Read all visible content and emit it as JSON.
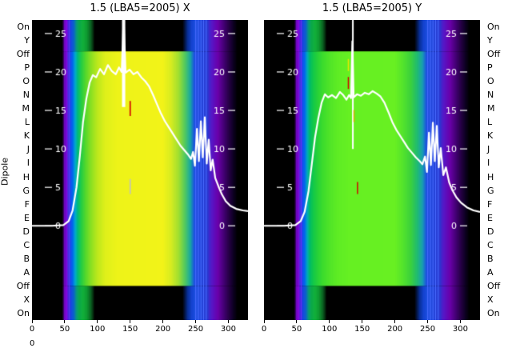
{
  "figure": {
    "ylabel": "Dipole",
    "row_labels": [
      "On",
      "Y",
      "Off",
      "P",
      "O",
      "N",
      "M",
      "L",
      "K",
      "J",
      "I",
      "H",
      "G",
      "F",
      "E",
      "D",
      "C",
      "B",
      "A",
      "Off",
      "X",
      "On"
    ],
    "stray_tick": "0"
  },
  "chart_data": [
    {
      "type": "heatmap",
      "title": "1.5 (LBA5=2005) X",
      "x_ticks": [
        0,
        50,
        100,
        150,
        200,
        250,
        300
      ],
      "x_range": [
        0,
        330
      ],
      "rows": [
        "On",
        "Y",
        "Off",
        "P",
        "O",
        "N",
        "M",
        "L",
        "K",
        "J",
        "I",
        "H",
        "G",
        "F",
        "E",
        "D",
        "C",
        "B",
        "A",
        "Off",
        "X",
        "On"
      ],
      "value_axis": {
        "ticks": [
          0,
          5,
          10,
          15,
          20,
          25
        ],
        "max": 25,
        "zero_frac": 0.686,
        "top_frac": 0.045
      },
      "line": {
        "color": "#ffffff",
        "points": [
          [
            0,
            0
          ],
          [
            30,
            0
          ],
          [
            48,
            0.1
          ],
          [
            56,
            0.6
          ],
          [
            62,
            2
          ],
          [
            68,
            5
          ],
          [
            73,
            9
          ],
          [
            78,
            13.5
          ],
          [
            83,
            16.5
          ],
          [
            88,
            18.6
          ],
          [
            93,
            19.6
          ],
          [
            98,
            19.3
          ],
          [
            104,
            20.4
          ],
          [
            110,
            19.7
          ],
          [
            116,
            20.9
          ],
          [
            122,
            20.1
          ],
          [
            128,
            19.7
          ],
          [
            133,
            20.6
          ],
          [
            137,
            20.0
          ],
          [
            140,
            27
          ],
          [
            143,
            19.9
          ],
          [
            149,
            20.3
          ],
          [
            155,
            19.7
          ],
          [
            161,
            20.0
          ],
          [
            167,
            19.3
          ],
          [
            173,
            18.8
          ],
          [
            179,
            18.1
          ],
          [
            185,
            17.0
          ],
          [
            191,
            15.8
          ],
          [
            197,
            14.6
          ],
          [
            203,
            13.6
          ],
          [
            209,
            12.8
          ],
          [
            215,
            12.0
          ],
          [
            221,
            11.2
          ],
          [
            227,
            10.4
          ],
          [
            233,
            9.8
          ],
          [
            239,
            9.2
          ],
          [
            243,
            8.7
          ],
          [
            246,
            9.6
          ],
          [
            249,
            7.8
          ],
          [
            252,
            12.6
          ],
          [
            255,
            8.4
          ],
          [
            258,
            13.6
          ],
          [
            261,
            8.9
          ],
          [
            264,
            14.1
          ],
          [
            267,
            8.1
          ],
          [
            270,
            11.2
          ],
          [
            273,
            7.2
          ],
          [
            276,
            8.6
          ],
          [
            280,
            6.2
          ],
          [
            285,
            5.1
          ],
          [
            290,
            4.1
          ],
          [
            296,
            3.2
          ],
          [
            303,
            2.6
          ],
          [
            312,
            2.2
          ],
          [
            322,
            2.0
          ],
          [
            330,
            1.9
          ]
        ]
      },
      "colormap_bright": [
        [
          0,
          "#000000"
        ],
        [
          46,
          "#000000"
        ],
        [
          49,
          "#4b0082"
        ],
        [
          52,
          "#6a00c8"
        ],
        [
          55,
          "#4433dd"
        ],
        [
          58,
          "#2244ee"
        ],
        [
          62,
          "#0066ee"
        ],
        [
          66,
          "#00aacc"
        ],
        [
          70,
          "#00bb77"
        ],
        [
          75,
          "#22cc44"
        ],
        [
          82,
          "#55d82c"
        ],
        [
          90,
          "#8ae022"
        ],
        [
          100,
          "#bce81c"
        ],
        [
          112,
          "#dff01a"
        ],
        [
          130,
          "#eef318"
        ],
        [
          200,
          "#f2f318"
        ],
        [
          212,
          "#d8ec20"
        ],
        [
          224,
          "#a0e030"
        ],
        [
          234,
          "#50c860"
        ],
        [
          242,
          "#18a8a0"
        ],
        [
          248,
          "#1c50e0"
        ],
        [
          268,
          "#2838d0"
        ],
        [
          274,
          "#5518c8"
        ],
        [
          284,
          "#6a00aa"
        ],
        [
          292,
          "#48007a"
        ],
        [
          300,
          "#28004a"
        ],
        [
          308,
          "#0c0020"
        ],
        [
          314,
          "#000000"
        ],
        [
          330,
          "#000000"
        ]
      ],
      "colormap_edge": [
        [
          0,
          "#000000"
        ],
        [
          46,
          "#000000"
        ],
        [
          49,
          "#50008c"
        ],
        [
          52,
          "#7a00d2"
        ],
        [
          56,
          "#3c2ce0"
        ],
        [
          60,
          "#1548e0"
        ],
        [
          64,
          "#0a64c8"
        ],
        [
          68,
          "#089a78"
        ],
        [
          72,
          "#0aa84a"
        ],
        [
          78,
          "#12b03a"
        ],
        [
          84,
          "#0e9830"
        ],
        [
          90,
          "#0a6020"
        ],
        [
          96,
          "#000000"
        ],
        [
          230,
          "#000000"
        ],
        [
          238,
          "#08309a"
        ],
        [
          244,
          "#1442d0"
        ],
        [
          250,
          "#1c50e0"
        ],
        [
          268,
          "#2838d0"
        ],
        [
          274,
          "#5518c8"
        ],
        [
          284,
          "#6a00aa"
        ],
        [
          292,
          "#48007a"
        ],
        [
          300,
          "#28004a"
        ],
        [
          308,
          "#0c0020"
        ],
        [
          314,
          "#000000"
        ],
        [
          330,
          "#000000"
        ]
      ],
      "features": [
        {
          "x": 49.5,
          "w": 1.2,
          "y1": 0,
          "y2": 1,
          "color": "#8a10e8"
        },
        {
          "x": 52.8,
          "w": 1.2,
          "y1": 0,
          "y2": 1,
          "color": "#8a10e8"
        },
        {
          "x": 56.2,
          "w": 1.2,
          "y1": 0,
          "y2": 1,
          "color": "#6a2cf0"
        },
        {
          "x": 249.5,
          "w": 1.3,
          "y1": 0,
          "y2": 1,
          "color": "#4a6cff"
        },
        {
          "x": 253.5,
          "w": 1.3,
          "y1": 0,
          "y2": 1,
          "color": "#4a6cff"
        },
        {
          "x": 257.5,
          "w": 1.3,
          "y1": 0,
          "y2": 1,
          "color": "#4a6cff"
        },
        {
          "x": 261.5,
          "w": 1.3,
          "y1": 0,
          "y2": 1,
          "color": "#4a6cff"
        },
        {
          "x": 265.5,
          "w": 1.3,
          "y1": 0,
          "y2": 1,
          "color": "#4a6cff"
        },
        {
          "x": 137.5,
          "w": 5,
          "y1": 0,
          "y2": 0.29,
          "color": "#ffffff"
        },
        {
          "x": 149,
          "w": 2,
          "y1": 0.27,
          "y2": 0.32,
          "color": "#d40000"
        },
        {
          "x": 149,
          "w": 2,
          "y1": 0.53,
          "y2": 0.58,
          "color": "#c0c0c0"
        }
      ]
    },
    {
      "type": "heatmap",
      "title": "1.5 (LBA5=2005) Y",
      "x_ticks": [
        0,
        50,
        100,
        150,
        200,
        250,
        300
      ],
      "x_range": [
        0,
        330
      ],
      "rows": [
        "On",
        "Y",
        "Off",
        "P",
        "O",
        "N",
        "M",
        "L",
        "K",
        "J",
        "I",
        "H",
        "G",
        "F",
        "E",
        "D",
        "C",
        "B",
        "A",
        "Off",
        "X",
        "On"
      ],
      "value_axis": {
        "ticks": [
          0,
          5,
          10,
          15,
          20,
          25
        ],
        "max": 25,
        "zero_frac": 0.686,
        "top_frac": 0.045
      },
      "line": {
        "color": "#ffffff",
        "points": [
          [
            0,
            0
          ],
          [
            30,
            0
          ],
          [
            48,
            0.1
          ],
          [
            56,
            0.6
          ],
          [
            62,
            1.8
          ],
          [
            68,
            4.5
          ],
          [
            73,
            8
          ],
          [
            78,
            11.5
          ],
          [
            83,
            14
          ],
          [
            88,
            16
          ],
          [
            93,
            17.1
          ],
          [
            98,
            16.7
          ],
          [
            104,
            17.0
          ],
          [
            110,
            16.6
          ],
          [
            116,
            17.4
          ],
          [
            121,
            17.0
          ],
          [
            126,
            16.4
          ],
          [
            130,
            17.0
          ],
          [
            133,
            16.6
          ],
          [
            135,
            24
          ],
          [
            137,
            16.7
          ],
          [
            142,
            17.1
          ],
          [
            148,
            16.9
          ],
          [
            154,
            17.3
          ],
          [
            160,
            17.1
          ],
          [
            166,
            17.5
          ],
          [
            172,
            17.2
          ],
          [
            178,
            16.8
          ],
          [
            184,
            16.0
          ],
          [
            190,
            14.8
          ],
          [
            196,
            13.5
          ],
          [
            202,
            12.5
          ],
          [
            208,
            11.7
          ],
          [
            214,
            10.9
          ],
          [
            220,
            10.1
          ],
          [
            226,
            9.5
          ],
          [
            232,
            8.9
          ],
          [
            238,
            8.4
          ],
          [
            242,
            8.0
          ],
          [
            246,
            9.0
          ],
          [
            249,
            7.0
          ],
          [
            252,
            12.1
          ],
          [
            255,
            7.9
          ],
          [
            258,
            13.4
          ],
          [
            261,
            8.4
          ],
          [
            264,
            13.0
          ],
          [
            267,
            7.6
          ],
          [
            270,
            10.1
          ],
          [
            274,
            6.6
          ],
          [
            278,
            7.6
          ],
          [
            283,
            5.6
          ],
          [
            288,
            4.6
          ],
          [
            294,
            3.7
          ],
          [
            301,
            3.0
          ],
          [
            310,
            2.4
          ],
          [
            320,
            2.0
          ],
          [
            330,
            1.8
          ]
        ]
      },
      "colormap_bright": [
        [
          0,
          "#000000"
        ],
        [
          46,
          "#000000"
        ],
        [
          49,
          "#4b0082"
        ],
        [
          52,
          "#6a00c8"
        ],
        [
          55,
          "#4433dd"
        ],
        [
          58,
          "#2244ee"
        ],
        [
          62,
          "#0066ee"
        ],
        [
          66,
          "#00aabb"
        ],
        [
          70,
          "#00bb66"
        ],
        [
          75,
          "#10c84a"
        ],
        [
          82,
          "#28d238"
        ],
        [
          90,
          "#3cdc2c"
        ],
        [
          100,
          "#50e428"
        ],
        [
          112,
          "#5eec24"
        ],
        [
          130,
          "#66f022"
        ],
        [
          200,
          "#68f022"
        ],
        [
          212,
          "#54e42c"
        ],
        [
          224,
          "#3cd23c"
        ],
        [
          234,
          "#20bb70"
        ],
        [
          242,
          "#18a0b0"
        ],
        [
          248,
          "#1c50e0"
        ],
        [
          268,
          "#2838d0"
        ],
        [
          274,
          "#5518c8"
        ],
        [
          284,
          "#6a00aa"
        ],
        [
          292,
          "#48007a"
        ],
        [
          300,
          "#28004a"
        ],
        [
          308,
          "#0c0020"
        ],
        [
          314,
          "#000000"
        ],
        [
          330,
          "#000000"
        ]
      ],
      "colormap_edge": [
        [
          0,
          "#000000"
        ],
        [
          46,
          "#000000"
        ],
        [
          49,
          "#50008c"
        ],
        [
          52,
          "#7a00d2"
        ],
        [
          56,
          "#3c2ce0"
        ],
        [
          60,
          "#1548e0"
        ],
        [
          64,
          "#0a64c8"
        ],
        [
          68,
          "#089a78"
        ],
        [
          72,
          "#0aa84a"
        ],
        [
          78,
          "#12b03a"
        ],
        [
          84,
          "#0e9830"
        ],
        [
          90,
          "#0a6020"
        ],
        [
          96,
          "#000000"
        ],
        [
          230,
          "#000000"
        ],
        [
          238,
          "#08309a"
        ],
        [
          244,
          "#1442d0"
        ],
        [
          250,
          "#1c50e0"
        ],
        [
          268,
          "#2838d0"
        ],
        [
          274,
          "#5518c8"
        ],
        [
          284,
          "#6a00aa"
        ],
        [
          292,
          "#48007a"
        ],
        [
          300,
          "#28004a"
        ],
        [
          308,
          "#0c0020"
        ],
        [
          314,
          "#000000"
        ],
        [
          330,
          "#000000"
        ]
      ],
      "features": [
        {
          "x": 49.5,
          "w": 1.2,
          "y1": 0,
          "y2": 1,
          "color": "#8a10e8"
        },
        {
          "x": 52.8,
          "w": 1.2,
          "y1": 0,
          "y2": 1,
          "color": "#8a10e8"
        },
        {
          "x": 56.2,
          "w": 1.2,
          "y1": 0,
          "y2": 1,
          "color": "#6a2cf0"
        },
        {
          "x": 249.5,
          "w": 1.3,
          "y1": 0,
          "y2": 1,
          "color": "#4a6cff"
        },
        {
          "x": 253.5,
          "w": 1.3,
          "y1": 0,
          "y2": 1,
          "color": "#4a6cff"
        },
        {
          "x": 257.5,
          "w": 1.3,
          "y1": 0,
          "y2": 1,
          "color": "#4a6cff"
        },
        {
          "x": 261.5,
          "w": 1.3,
          "y1": 0,
          "y2": 1,
          "color": "#4a6cff"
        },
        {
          "x": 265.5,
          "w": 1.3,
          "y1": 0,
          "y2": 1,
          "color": "#4a6cff"
        },
        {
          "x": 134.5,
          "w": 2.5,
          "y1": 0,
          "y2": 0.43,
          "color": "#ffffff"
        },
        {
          "x": 128,
          "w": 1.8,
          "y1": 0.13,
          "y2": 0.17,
          "color": "#e8e800"
        },
        {
          "x": 128,
          "w": 1.8,
          "y1": 0.19,
          "y2": 0.23,
          "color": "#d40000"
        },
        {
          "x": 136.5,
          "w": 1.8,
          "y1": 0.3,
          "y2": 0.34,
          "color": "#d4b400"
        },
        {
          "x": 142,
          "w": 1.8,
          "y1": 0.54,
          "y2": 0.58,
          "color": "#d40000"
        }
      ]
    }
  ]
}
